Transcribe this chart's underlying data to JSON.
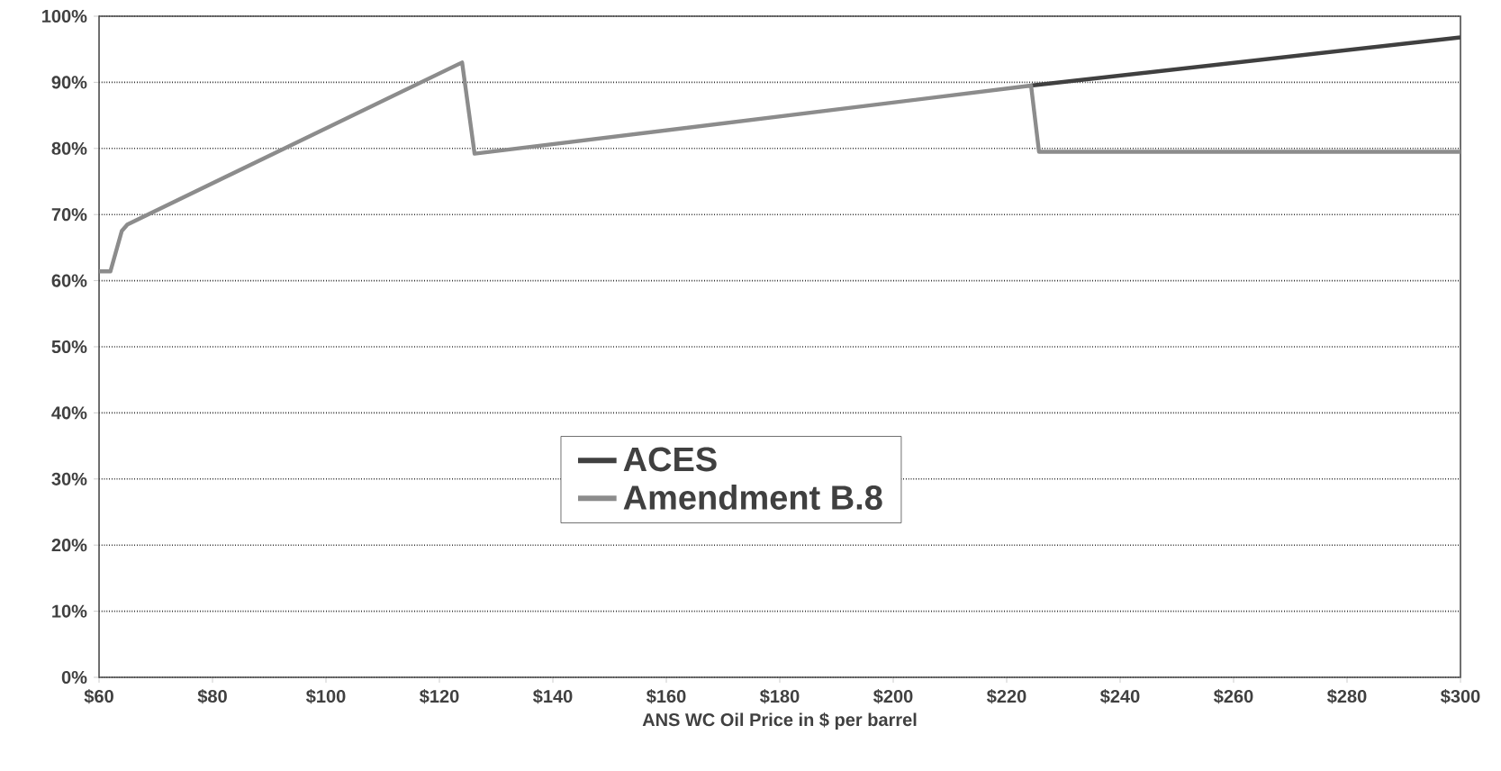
{
  "chart_data": {
    "type": "line",
    "xlabel": "ANS WC Oil Price in $ per barrel",
    "series": [
      {
        "name": "ACES",
        "color": "#404040",
        "x": [
          224.3,
          300
        ],
        "values": [
          89.5,
          96.8
        ]
      },
      {
        "name": "Amendment B.8",
        "color": "#8c8c8c",
        "x": [
          60,
          62,
          64,
          65,
          124,
          126.2,
          224.3,
          225.7,
          300
        ],
        "values": [
          61.4,
          61.4,
          67.5,
          68.5,
          93,
          79.2,
          89.5,
          79.5,
          79.5
        ]
      }
    ],
    "xlim": [
      60,
      300
    ],
    "xticks": [
      {
        "value": 60,
        "label": "$60"
      },
      {
        "value": 80,
        "label": "$80"
      },
      {
        "value": 100,
        "label": "$100"
      },
      {
        "value": 120,
        "label": "$120"
      },
      {
        "value": 140,
        "label": "$140"
      },
      {
        "value": 160,
        "label": "$160"
      },
      {
        "value": 180,
        "label": "$180"
      },
      {
        "value": 200,
        "label": "$200"
      },
      {
        "value": 220,
        "label": "$220"
      },
      {
        "value": 240,
        "label": "$240"
      },
      {
        "value": 260,
        "label": "$260"
      },
      {
        "value": 280,
        "label": "$280"
      },
      {
        "value": 300,
        "label": "$300"
      }
    ],
    "ylim": [
      0,
      100
    ],
    "yticks": [
      {
        "value": 0,
        "label": "0%"
      },
      {
        "value": 10,
        "label": "10%"
      },
      {
        "value": 20,
        "label": "20%"
      },
      {
        "value": 30,
        "label": "30%"
      },
      {
        "value": 40,
        "label": "40%"
      },
      {
        "value": 50,
        "label": "50%"
      },
      {
        "value": 60,
        "label": "60%"
      },
      {
        "value": 70,
        "label": "70%"
      },
      {
        "value": 80,
        "label": "80%"
      },
      {
        "value": 90,
        "label": "90%"
      },
      {
        "value": 100,
        "label": "100%"
      }
    ],
    "grid": "y",
    "legend": "center",
    "marker": "none",
    "line_style": "solid"
  }
}
